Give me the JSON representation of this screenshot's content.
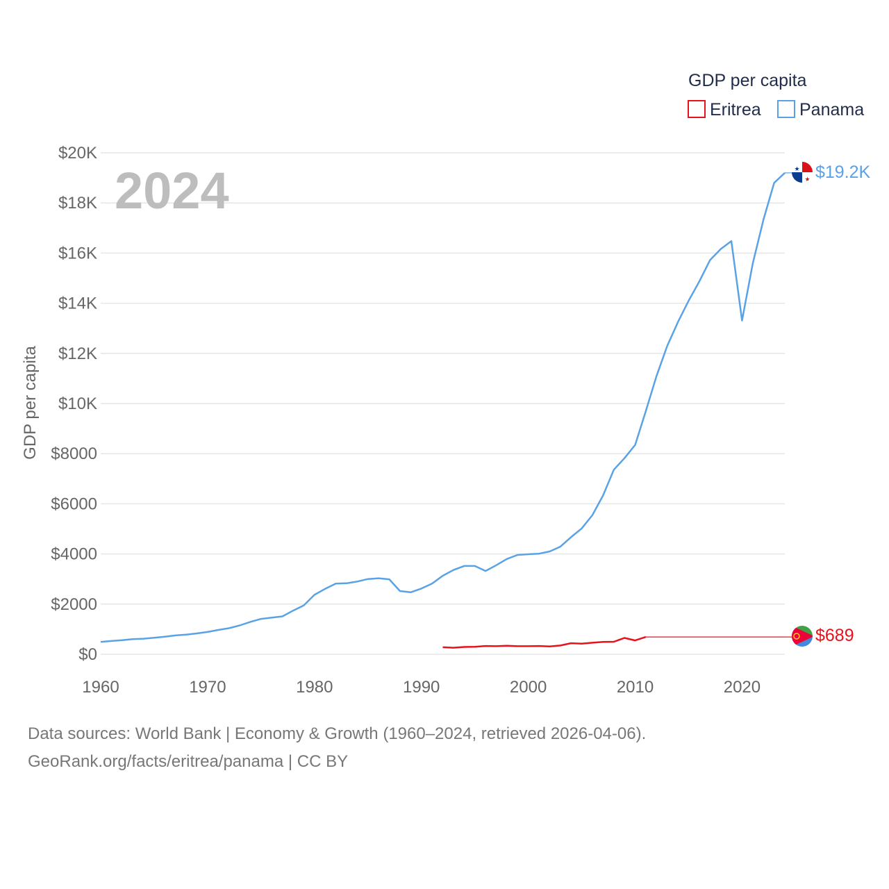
{
  "chart_data": {
    "type": "line",
    "title": "",
    "year_label": "2024",
    "xlabel": "",
    "ylabel": "GDP per capita",
    "xlim": [
      1960,
      2024
    ],
    "ylim": [
      0,
      20000
    ],
    "x_ticks": [
      1960,
      1970,
      1980,
      1990,
      2000,
      2010,
      2020
    ],
    "x_tick_labels": [
      "1960",
      "1970",
      "1980",
      "1990",
      "2000",
      "2010",
      "2020"
    ],
    "y_ticks": [
      0,
      2000,
      4000,
      6000,
      8000,
      10000,
      12000,
      14000,
      16000,
      18000,
      20000
    ],
    "y_tick_labels": [
      "$0",
      "$2000",
      "$4000",
      "$6000",
      "$8000",
      "$10K",
      "$12K",
      "$14K",
      "$16K",
      "$18K",
      "$20K"
    ],
    "legend": {
      "title": "GDP per capita",
      "position": "top-right"
    },
    "series": [
      {
        "name": "Eritrea",
        "color": "#e8121c",
        "end_label": "$689",
        "flag": "eritrea-flag",
        "x": [
          1992,
          1993,
          1994,
          1995,
          1996,
          1997,
          1998,
          1999,
          2000,
          2001,
          2002,
          2003,
          2004,
          2005,
          2006,
          2007,
          2008,
          2009,
          2010,
          2011
        ],
        "values": [
          280,
          260,
          290,
          300,
          330,
          320,
          340,
          320,
          320,
          330,
          310,
          350,
          440,
          420,
          460,
          490,
          500,
          650,
          550,
          689
        ],
        "extend_to": 2024,
        "extend_value": 689
      },
      {
        "name": "Panama",
        "color": "#5aa2e6",
        "end_label": "$19.2K",
        "flag": "panama-flag",
        "x": [
          1960,
          1961,
          1962,
          1963,
          1964,
          1965,
          1966,
          1967,
          1968,
          1969,
          1970,
          1971,
          1972,
          1973,
          1974,
          1975,
          1976,
          1977,
          1978,
          1979,
          1980,
          1981,
          1982,
          1983,
          1984,
          1985,
          1986,
          1987,
          1988,
          1989,
          1990,
          1991,
          1992,
          1993,
          1994,
          1995,
          1996,
          1997,
          1998,
          1999,
          2000,
          2001,
          2002,
          2003,
          2004,
          2005,
          2006,
          2007,
          2008,
          2009,
          2010,
          2011,
          2012,
          2013,
          2014,
          2015,
          2016,
          2017,
          2018,
          2019,
          2020,
          2021,
          2022,
          2023,
          2024
        ],
        "values": [
          490,
          530,
          560,
          600,
          620,
          660,
          700,
          750,
          780,
          830,
          890,
          970,
          1040,
          1150,
          1290,
          1410,
          1460,
          1510,
          1740,
          1950,
          2370,
          2610,
          2820,
          2830,
          2900,
          3000,
          3030,
          2990,
          2520,
          2470,
          2620,
          2820,
          3130,
          3360,
          3520,
          3520,
          3320,
          3550,
          3800,
          3960,
          3990,
          4010,
          4100,
          4290,
          4670,
          5020,
          5550,
          6340,
          7360,
          7820,
          8350,
          9700,
          11100,
          12300,
          13250,
          14100,
          14870,
          15720,
          16160,
          16480,
          13310,
          15580,
          17330,
          18800,
          19200
        ]
      }
    ]
  },
  "footer": {
    "line1": "Data sources: World Bank | Economy & Growth (1960–2024, retrieved 2026-04-06).",
    "line2": "GeoRank.org/facts/eritrea/panama | CC BY"
  }
}
